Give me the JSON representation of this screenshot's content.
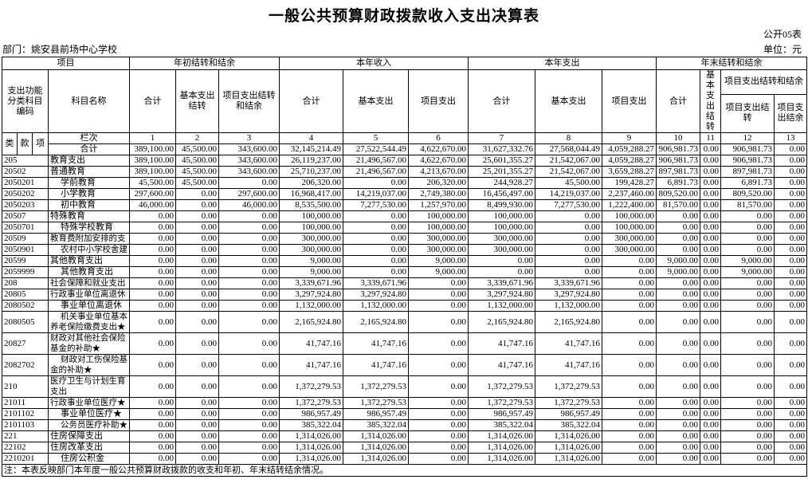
{
  "title": "一般公共预算财政拨款收入支出决算表",
  "meta": {
    "table_code": "公开05表",
    "department": "部门：姚安县前场中心学校",
    "unit": "单位：元"
  },
  "table": {
    "project_label": "项目",
    "code_label": "支出功能分类科目编码",
    "name_label": "科目名称",
    "code_sub": [
      "类",
      "款",
      "项"
    ],
    "lanci_label": "栏次",
    "col_numbers": [
      "1",
      "2",
      "3",
      "4",
      "5",
      "6",
      "7",
      "8",
      "9",
      "10",
      "11",
      "12",
      "13"
    ],
    "groups": [
      {
        "label": "年初结转和结余",
        "cols": [
          "合计",
          "基本支出结转",
          "项目支出结转和结余"
        ]
      },
      {
        "label": "本年收入",
        "cols": [
          "合计",
          "基本支出",
          "项目支出"
        ]
      },
      {
        "label": "本年支出",
        "cols": [
          "合计",
          "基本支出",
          "项目支出"
        ]
      },
      {
        "label": "年末结转和结余",
        "cols": [
          "合计",
          "基本支出结转"
        ],
        "subgroup": {
          "label": "项目支出结转和结余",
          "cols": [
            "项目支出结转",
            "项目支出结余"
          ]
        }
      }
    ],
    "rows": [
      {
        "is_total": true,
        "code": "",
        "name": "合计",
        "values": [
          "389,100.00",
          "45,500.00",
          "343,600.00",
          "32,145,214.49",
          "27,522,544.49",
          "4,622,670.00",
          "31,627,332.76",
          "27,568,044.49",
          "4,059,288.27",
          "906,981.73",
          "0.00",
          "906,981.73",
          "0.00"
        ]
      },
      {
        "code": "205",
        "name": "教育支出",
        "values": [
          "389,100.00",
          "45,500.00",
          "343,600.00",
          "26,119,237.00",
          "21,496,567.00",
          "4,622,670.00",
          "25,601,355.27",
          "21,542,067.00",
          "4,059,288.27",
          "906,981.73",
          "0.00",
          "906,981.73",
          "0.00"
        ]
      },
      {
        "code": "20502",
        "name": "普通教育",
        "values": [
          "389,100.00",
          "45,500.00",
          "343,600.00",
          "25,710,237.00",
          "21,496,567.00",
          "4,213,670.00",
          "25,201,355.27",
          "21,542,067.00",
          "3,659,288.27",
          "897,981.73",
          "0.00",
          "897,981.73",
          "0.00"
        ]
      },
      {
        "code": "2050201",
        "name": "学前教育",
        "indent": true,
        "values": [
          "45,500.00",
          "45,500.00",
          "0.00",
          "206,320.00",
          "0.00",
          "206,320.00",
          "244,928.27",
          "45,500.00",
          "199,428.27",
          "6,891.73",
          "0.00",
          "6,891.73",
          "0.00"
        ]
      },
      {
        "code": "2050202",
        "name": "小学教育",
        "indent": true,
        "values": [
          "297,600.00",
          "0.00",
          "297,600.00",
          "16,968,417.00",
          "14,219,037.00",
          "2,749,380.00",
          "16,456,497.00",
          "14,219,037.00",
          "2,237,460.00",
          "809,520.00",
          "0.00",
          "809,520.00",
          "0.00"
        ]
      },
      {
        "code": "2050203",
        "name": "初中教育",
        "indent": true,
        "values": [
          "46,000.00",
          "0.00",
          "46,000.00",
          "8,535,500.00",
          "7,277,530.00",
          "1,257,970.00",
          "8,499,930.00",
          "7,277,530.00",
          "1,222,400.00",
          "81,570.00",
          "0.00",
          "81,570.00",
          "0.00"
        ]
      },
      {
        "code": "20507",
        "name": "特殊教育",
        "values": [
          "0.00",
          "0.00",
          "0.00",
          "100,000.00",
          "0.00",
          "100,000.00",
          "100,000.00",
          "0.00",
          "100,000.00",
          "0.00",
          "0.00",
          "0.00",
          "0.00"
        ]
      },
      {
        "code": "2050701",
        "name": "特殊学校教育",
        "indent": true,
        "values": [
          "0.00",
          "0.00",
          "0.00",
          "100,000.00",
          "0.00",
          "100,000.00",
          "100,000.00",
          "0.00",
          "100,000.00",
          "0.00",
          "0.00",
          "0.00",
          "0.00"
        ]
      },
      {
        "code": "20509",
        "name": "教育费附加安排的支",
        "values": [
          "0.00",
          "0.00",
          "0.00",
          "300,000.00",
          "0.00",
          "300,000.00",
          "300,000.00",
          "0.00",
          "300,000.00",
          "0.00",
          "0.00",
          "0.00",
          "0.00"
        ]
      },
      {
        "code": "2050901",
        "name": "农村中小学校舍建",
        "indent": true,
        "values": [
          "0.00",
          "0.00",
          "0.00",
          "300,000.00",
          "0.00",
          "300,000.00",
          "300,000.00",
          "0.00",
          "300,000.00",
          "0.00",
          "0.00",
          "0.00",
          "0.00"
        ]
      },
      {
        "code": "20599",
        "name": "其他教育支出",
        "values": [
          "0.00",
          "0.00",
          "0.00",
          "9,000.00",
          "0.00",
          "9,000.00",
          "0.00",
          "0.00",
          "0.00",
          "9,000.00",
          "0.00",
          "9,000.00",
          "0.00"
        ]
      },
      {
        "code": "2059999",
        "name": "其他教育支出",
        "indent": true,
        "values": [
          "0.00",
          "0.00",
          "0.00",
          "9,000.00",
          "0.00",
          "9,000.00",
          "0.00",
          "0.00",
          "0.00",
          "9,000.00",
          "0.00",
          "9,000.00",
          "0.00"
        ]
      },
      {
        "code": "208",
        "name": "社会保障和就业支出",
        "values": [
          "0.00",
          "0.00",
          "0.00",
          "3,339,671.96",
          "3,339,671.96",
          "0.00",
          "3,339,671.96",
          "3,339,671.96",
          "0.00",
          "0.00",
          "0.00",
          "0.00",
          "0.00"
        ]
      },
      {
        "code": "20805",
        "name": "行政事业单位离退休",
        "values": [
          "0.00",
          "0.00",
          "0.00",
          "3,297,924.80",
          "3,297,924.80",
          "0.00",
          "3,297,924.80",
          "3,297,924.80",
          "0.00",
          "0.00",
          "0.00",
          "0.00",
          "0.00"
        ]
      },
      {
        "code": "2080502",
        "name": "事业单位离退休",
        "indent": true,
        "values": [
          "0.00",
          "0.00",
          "0.00",
          "1,132,000.00",
          "1,132,000.00",
          "0.00",
          "1,132,000.00",
          "1,132,000.00",
          "0.00",
          "0.00",
          "0.00",
          "0.00",
          "0.00"
        ]
      },
      {
        "code": "2080505",
        "name": "机关事业单位基本养老保险缴费支出★",
        "indent": true,
        "wrap": true,
        "values": [
          "0.00",
          "0.00",
          "0.00",
          "2,165,924.80",
          "2,165,924.80",
          "0.00",
          "2,165,924.80",
          "2,165,924.80",
          "0.00",
          "0.00",
          "0.00",
          "0.00",
          "0.00"
        ]
      },
      {
        "code": "20827",
        "name": "财政对其他社会保险基金的补助★",
        "wrap": true,
        "values": [
          "0.00",
          "0.00",
          "0.00",
          "41,747.16",
          "41,747.16",
          "0.00",
          "41,747.16",
          "41,747.16",
          "0.00",
          "0.00",
          "0.00",
          "0.00",
          "0.00"
        ]
      },
      {
        "code": "2082702",
        "name": "财政对工伤保险基金的补助★",
        "indent": true,
        "wrap": true,
        "values": [
          "0.00",
          "0.00",
          "0.00",
          "41,747.16",
          "41,747.16",
          "0.00",
          "41,747.16",
          "41,747.16",
          "0.00",
          "0.00",
          "0.00",
          "0.00",
          "0.00"
        ]
      },
      {
        "code": "210",
        "name": "医疗卫生与计划生育支出",
        "wrap": true,
        "values": [
          "0.00",
          "0.00",
          "0.00",
          "1,372,279.53",
          "1,372,279.53",
          "0.00",
          "1,372,279.53",
          "1,372,279.53",
          "0.00",
          "0.00",
          "0.00",
          "0.00",
          "0.00"
        ]
      },
      {
        "code": "21011",
        "name": "行政事业单位医疗★",
        "values": [
          "0.00",
          "0.00",
          "0.00",
          "1,372,279.53",
          "1,372,279.53",
          "0.00",
          "1,372,279.53",
          "1,372,279.53",
          "0.00",
          "0.00",
          "0.00",
          "0.00",
          "0.00"
        ]
      },
      {
        "code": "2101102",
        "name": "事业单位医疗★",
        "indent": true,
        "values": [
          "0.00",
          "0.00",
          "0.00",
          "986,957.49",
          "986,957.49",
          "0.00",
          "986,957.49",
          "986,957.49",
          "0.00",
          "0.00",
          "0.00",
          "0.00",
          "0.00"
        ]
      },
      {
        "code": "2101103",
        "name": "公务员医疗补助★",
        "indent": true,
        "values": [
          "0.00",
          "0.00",
          "0.00",
          "385,322.04",
          "385,322.04",
          "0.00",
          "385,322.04",
          "385,322.04",
          "0.00",
          "0.00",
          "0.00",
          "0.00",
          "0.00"
        ]
      },
      {
        "code": "221",
        "name": "住房保障支出",
        "values": [
          "0.00",
          "0.00",
          "0.00",
          "1,314,026.00",
          "1,314,026.00",
          "0.00",
          "1,314,026.00",
          "1,314,026.00",
          "0.00",
          "0.00",
          "0.00",
          "0.00",
          "0.00"
        ]
      },
      {
        "code": "22102",
        "name": "住房改革支出",
        "values": [
          "0.00",
          "0.00",
          "0.00",
          "1,314,026.00",
          "1,314,026.00",
          "0.00",
          "1,314,026.00",
          "1,314,026.00",
          "0.00",
          "0.00",
          "0.00",
          "0.00",
          "0.00"
        ]
      },
      {
        "code": "2210201",
        "name": "住房公积金",
        "indent": true,
        "values": [
          "0.00",
          "0.00",
          "0.00",
          "1,314,026.00",
          "1,314,026.00",
          "0.00",
          "1,314,026.00",
          "1,314,026.00",
          "0.00",
          "0.00",
          "0.00",
          "0.00",
          "0.00"
        ]
      }
    ],
    "note": "注：本表反映部门本年度一般公共预算财政拨款的收支和年初、年末结转结余情况。"
  }
}
